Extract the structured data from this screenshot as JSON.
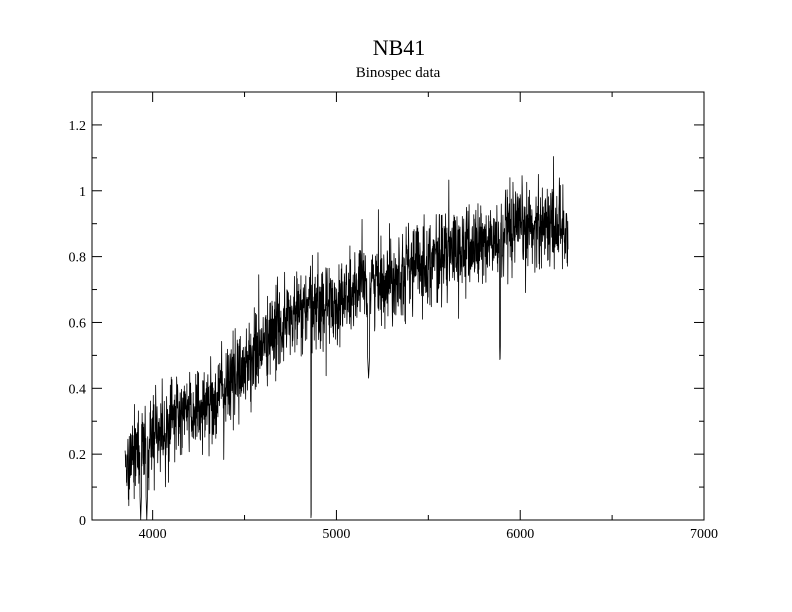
{
  "chart_data": {
    "type": "line",
    "title": "NB41",
    "subtitle": "Binospec data",
    "xlabel": "",
    "ylabel": "",
    "xlim": [
      3670,
      7000
    ],
    "ylim": [
      0,
      1.3
    ],
    "x_ticks": [
      4000,
      5000,
      6000,
      7000
    ],
    "x_tick_labels": [
      "4000",
      "5000",
      "6000",
      "7000"
    ],
    "y_ticks": [
      0,
      0.2,
      0.4,
      0.6,
      0.8,
      1,
      1.2
    ],
    "y_tick_labels": [
      "0",
      "0.2",
      "0.4",
      "0.6",
      "0.8",
      "1",
      "1.2"
    ],
    "x_minor_step": 500,
    "y_minor_step": 0.1,
    "grid": false,
    "legend": "none",
    "line_color": "#000000",
    "series": [
      {
        "x_range": [
          3850,
          6260
        ],
        "n_points": 1900,
        "continuum_x": [
          3850,
          3900,
          3950,
          4000,
          4100,
          4200,
          4300,
          4400,
          4500,
          4600,
          4700,
          4800,
          4900,
          5000,
          5100,
          5200,
          5300,
          5400,
          5500,
          5600,
          5700,
          5800,
          5900,
          6000,
          6100,
          6200,
          6260
        ],
        "continuum_y": [
          0.18,
          0.2,
          0.22,
          0.25,
          0.3,
          0.33,
          0.35,
          0.4,
          0.47,
          0.53,
          0.59,
          0.63,
          0.65,
          0.66,
          0.69,
          0.72,
          0.74,
          0.77,
          0.79,
          0.81,
          0.82,
          0.84,
          0.85,
          0.88,
          0.9,
          0.9,
          0.88
        ],
        "noise_amplitude": 0.065,
        "absorption_features": [
          {
            "x": 3935,
            "depth": 0.0,
            "width": 8
          },
          {
            "x": 3968,
            "depth": 0.0,
            "width": 8
          },
          {
            "x": 4862,
            "depth": -0.02,
            "width": 3
          },
          {
            "x": 5175,
            "depth": 0.43,
            "width": 12
          },
          {
            "x": 5890,
            "depth": 0.47,
            "width": 5
          }
        ]
      }
    ]
  }
}
